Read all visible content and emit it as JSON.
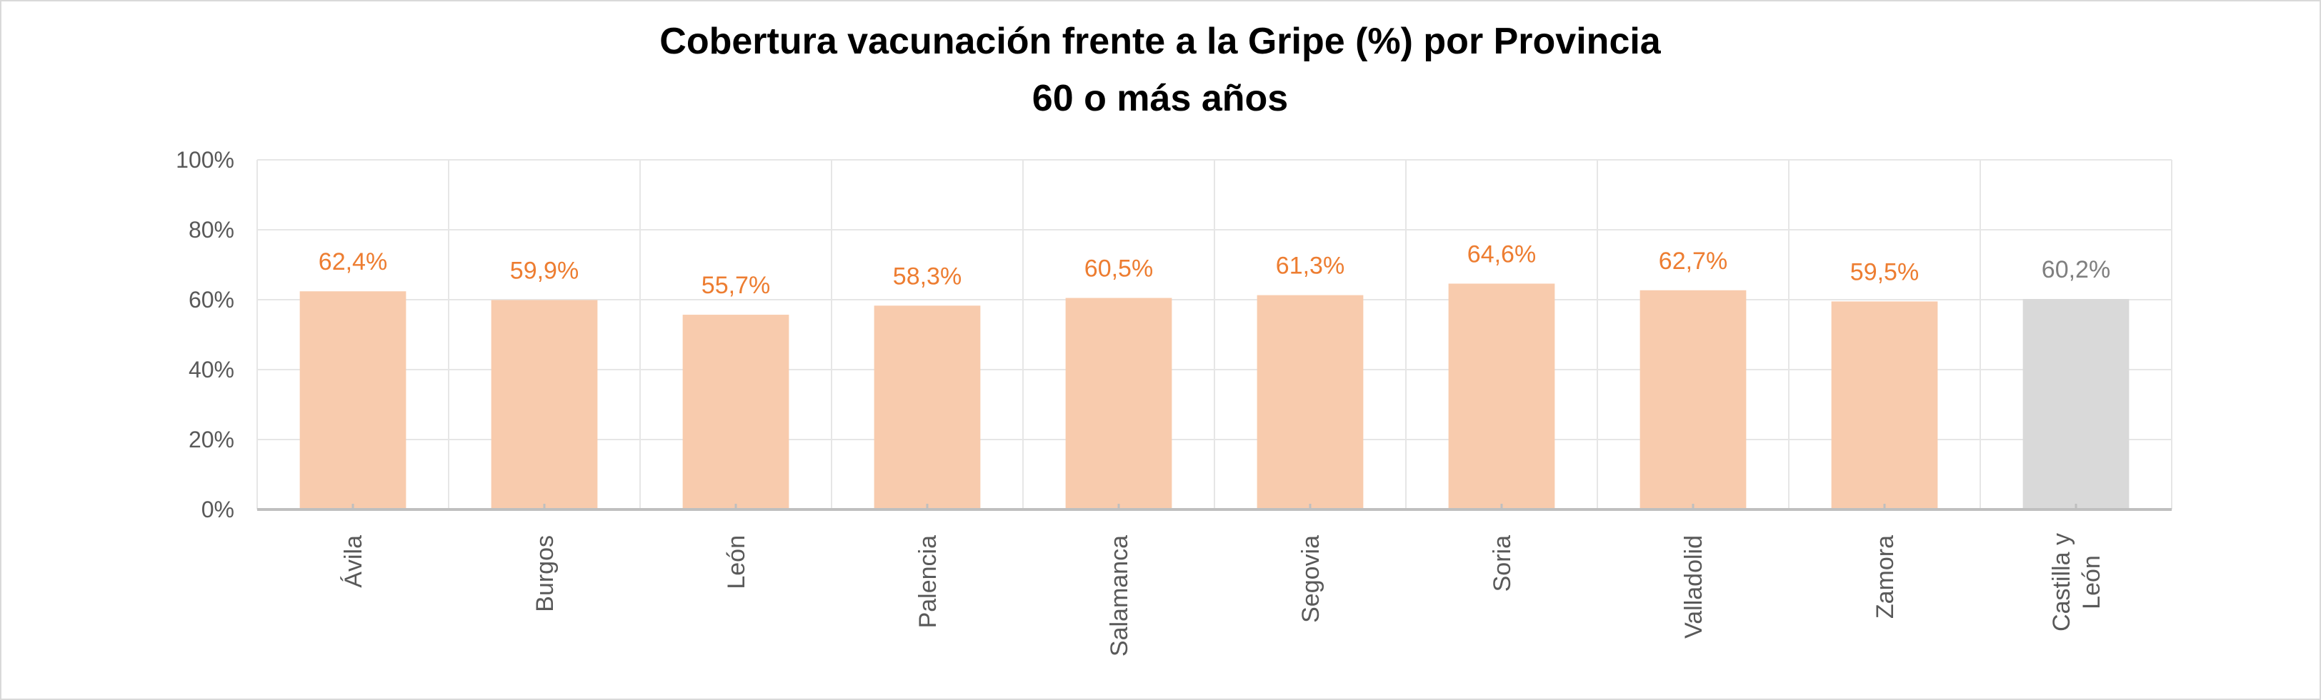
{
  "chart_data": {
    "type": "bar",
    "title": "Cobertura vacunación frente a la Gripe (%) por Provincia",
    "subtitle": "60 o más años",
    "categories": [
      [
        "Ávila"
      ],
      [
        "Burgos"
      ],
      [
        "León"
      ],
      [
        "Palencia"
      ],
      [
        "Salamanca"
      ],
      [
        "Segovia"
      ],
      [
        "Soria"
      ],
      [
        "Valladolid"
      ],
      [
        "Zamora"
      ],
      [
        "Castilla y",
        "León"
      ]
    ],
    "values": [
      62.4,
      59.9,
      55.7,
      58.3,
      60.5,
      61.3,
      64.6,
      62.7,
      59.5,
      60.2
    ],
    "data_labels": [
      "62,4%",
      "59,9%",
      "55,7%",
      "58,3%",
      "60,5%",
      "61,3%",
      "64,6%",
      "62,7%",
      "59,5%",
      "60,2%"
    ],
    "bar_colors": [
      "#f8cbad",
      "#f8cbad",
      "#f8cbad",
      "#f8cbad",
      "#f8cbad",
      "#f8cbad",
      "#f8cbad",
      "#f8cbad",
      "#f8cbad",
      "#d9d9d9"
    ],
    "label_colors": [
      "#ed7d31",
      "#ed7d31",
      "#ed7d31",
      "#ed7d31",
      "#ed7d31",
      "#ed7d31",
      "#ed7d31",
      "#ed7d31",
      "#ed7d31",
      "#7f7f7f"
    ],
    "yticks": [
      0,
      20,
      40,
      60,
      80,
      100
    ],
    "ytick_labels": [
      "0%",
      "20%",
      "40%",
      "60%",
      "80%",
      "100%"
    ],
    "ylim": [
      0,
      100
    ],
    "xlabel": "",
    "ylabel": "",
    "grid": true,
    "legend": "none"
  }
}
